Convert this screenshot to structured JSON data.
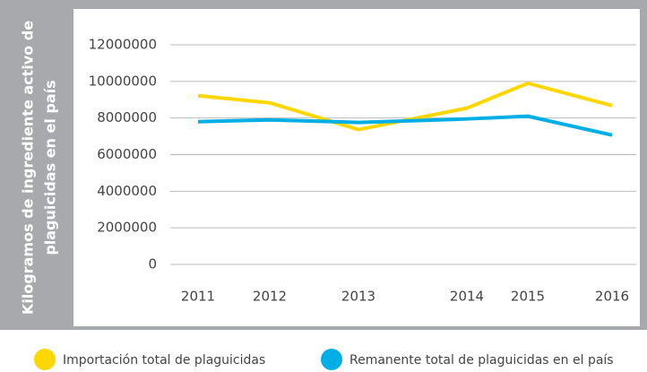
{
  "chart_data": {
    "type": "line",
    "ylabel": [
      "Kilogramos de ingrediente activo de",
      "plaguicidas en el país"
    ],
    "categories": [
      "2011",
      "2012",
      "2013",
      "2014",
      "2015",
      "2016"
    ],
    "series": [
      {
        "name": "Importación total de plaguicidas",
        "color": "#ffd700",
        "values": [
          9220000,
          8830000,
          7370000,
          8540000,
          9900000,
          8680000
        ]
      },
      {
        "name": "Remanente total de plaguicidas en el país",
        "color": "#00aee6",
        "values": [
          7800000,
          7900000,
          7760000,
          7950000,
          8100000,
          7070000
        ]
      }
    ],
    "ylim": [
      0,
      12000000
    ],
    "yticks": [
      0,
      2000000,
      4000000,
      6000000,
      8000000,
      10000000,
      12000000
    ],
    "grid": true
  }
}
